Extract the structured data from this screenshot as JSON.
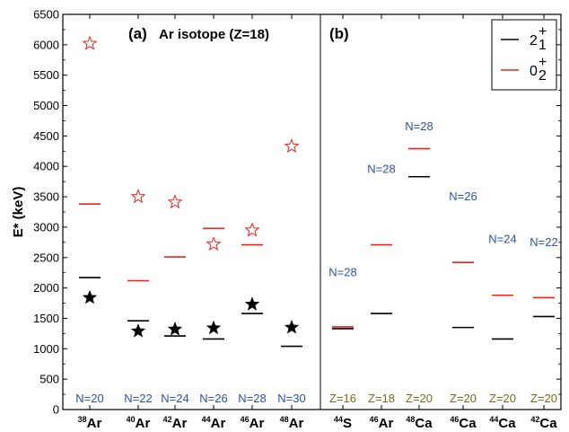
{
  "chart_data": {
    "type": "scatter",
    "ylabel": "E* (keV)",
    "ylim": [
      0,
      6500
    ],
    "yticks": [
      0,
      500,
      1000,
      1500,
      2000,
      2500,
      3000,
      3500,
      4000,
      4500,
      5000,
      5500,
      6000,
      6500
    ],
    "panels": [
      {
        "label": "(a)",
        "subtitle": "Ar isotope (Z=18)"
      },
      {
        "label": "(b)",
        "subtitle": ""
      }
    ],
    "categories": [
      {
        "mass": "38",
        "element": "Ar",
        "bottom_label": "N=20",
        "top_label": ""
      },
      {
        "mass": "40",
        "element": "Ar",
        "bottom_label": "N=22",
        "top_label": ""
      },
      {
        "mass": "42",
        "element": "Ar",
        "bottom_label": "N=24",
        "top_label": ""
      },
      {
        "mass": "44",
        "element": "Ar",
        "bottom_label": "N=26",
        "top_label": ""
      },
      {
        "mass": "46",
        "element": "Ar",
        "bottom_label": "N=28",
        "top_label": ""
      },
      {
        "mass": "48",
        "element": "Ar",
        "bottom_label": "N=30",
        "top_label": ""
      },
      {
        "mass": "44",
        "element": "S",
        "bottom_label": "Z=16",
        "top_label": "N=28"
      },
      {
        "mass": "46",
        "element": "Ar",
        "bottom_label": "Z=18",
        "top_label": "N=28"
      },
      {
        "mass": "48",
        "element": "Ca",
        "bottom_label": "Z=20",
        "top_label": "N=28"
      },
      {
        "mass": "46",
        "element": "Ca",
        "bottom_label": "Z=20",
        "top_label": "N=26"
      },
      {
        "mass": "44",
        "element": "Ca",
        "bottom_label": "Z=20",
        "top_label": "N=24"
      },
      {
        "mass": "42",
        "element": "Ca",
        "bottom_label": "Z=20",
        "top_label": "N=22"
      }
    ],
    "top_label_values": [
      null,
      null,
      null,
      null,
      null,
      null,
      2250,
      3950,
      4650,
      3500,
      2800,
      2750
    ],
    "series": [
      {
        "name": "2₁⁺",
        "style": "line",
        "color": "#000000",
        "values": [
          2170,
          1460,
          1210,
          1160,
          1580,
          1040,
          1330,
          1580,
          3830,
          1350,
          1160,
          1530
        ]
      },
      {
        "name": "0₂⁺",
        "style": "line",
        "color": "#e8261c",
        "values": [
          3380,
          2120,
          2510,
          2980,
          2710,
          null,
          1360,
          2710,
          4290,
          2420,
          1880,
          1840
        ]
      },
      {
        "style": "filled-star",
        "color": "#000000",
        "values": [
          1840,
          1290,
          1320,
          1340,
          1730,
          1350,
          null,
          null,
          null,
          null,
          null,
          null
        ]
      },
      {
        "style": "open-star",
        "color": "#e8261c",
        "values": [
          6020,
          3500,
          3410,
          2720,
          2950,
          4330,
          null,
          null,
          null,
          null,
          null,
          null
        ]
      }
    ],
    "legend": {
      "placement": "top-right",
      "entries": [
        {
          "base": "2",
          "sup": "+",
          "sub": "1",
          "color": "#000000"
        },
        {
          "base": "0",
          "sup": "+",
          "sub": "2",
          "color": "#e8261c"
        }
      ]
    },
    "colors": {
      "blue_label": "#2a52a8",
      "olive_label": "#7a6a1a",
      "red": "#e8261c",
      "black": "#000000"
    }
  }
}
